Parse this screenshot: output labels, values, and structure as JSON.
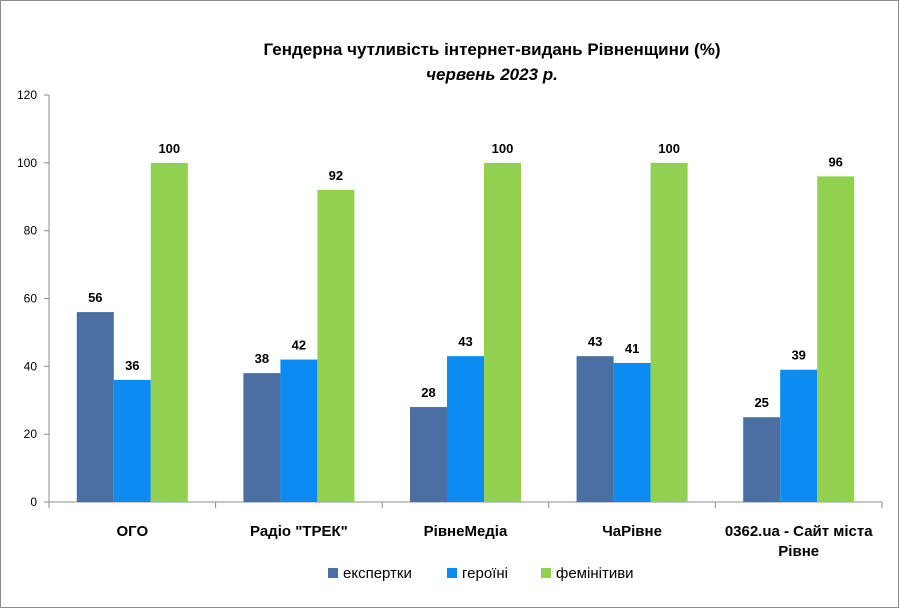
{
  "chart_data": {
    "type": "bar",
    "title": "Гендерна чутливість інтернет-видань Рівненщини (%)",
    "subtitle": "червень 2023 р.",
    "categories": [
      [
        "ОГО"
      ],
      [
        "Радіо \"ТРЕК\""
      ],
      [
        "РівнеМедіа"
      ],
      [
        "ЧаРівне"
      ],
      [
        "0362.ua - Сайт міста",
        "Рівне"
      ]
    ],
    "series": [
      {
        "name": "експертки",
        "color": "#4a6fa0",
        "values": [
          56,
          38,
          28,
          43,
          25
        ]
      },
      {
        "name": "героїні",
        "color": "#0c8cf2",
        "values": [
          36,
          42,
          43,
          41,
          39
        ]
      },
      {
        "name": "фемінітиви",
        "color": "#92d050",
        "values": [
          100,
          92,
          100,
          100,
          96
        ]
      }
    ],
    "ylim": [
      0,
      120
    ],
    "yticks": [
      0,
      20,
      40,
      60,
      80,
      100,
      120
    ],
    "grid": false,
    "legend": "bottom"
  }
}
